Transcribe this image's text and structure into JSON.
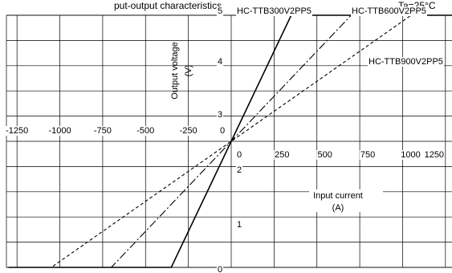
{
  "header_fragment": "put-output characteristics",
  "temp_fragment": "Ta=25°C",
  "chart_data": {
    "type": "line",
    "xlabel": "Input current",
    "xunit": "(A)",
    "ylabel": "Output voltage",
    "yunit": "(V)",
    "xlim": [
      -1300,
      1300
    ],
    "ylim": [
      0,
      5
    ],
    "grid": true,
    "x_ticks": [
      "-1250",
      "-1000",
      "-750",
      "-500",
      "-250",
      "0",
      "0",
      "250",
      "500",
      "750",
      "1000",
      "1250"
    ],
    "y_ticks": [
      "0",
      "1",
      "2",
      "3",
      "4",
      "5"
    ],
    "series": [
      {
        "name": "HC-TTB300V2PP5",
        "style": "solid",
        "x": [
          -1300,
          -350,
          350,
          1300
        ],
        "y": [
          0.0,
          0.0,
          5.0,
          5.0
        ]
      },
      {
        "name": "HC-TTB600V2PP5",
        "style": "dashdot",
        "x": [
          -1300,
          -700,
          700,
          1300
        ],
        "y": [
          0.0,
          0.0,
          5.0,
          5.0
        ]
      },
      {
        "name": "HC-TTB900V2PP5",
        "style": "dashed",
        "x": [
          -1300,
          -1050,
          1050,
          1300
        ],
        "y": [
          0.0,
          0.0,
          5.0,
          5.0
        ]
      }
    ]
  }
}
